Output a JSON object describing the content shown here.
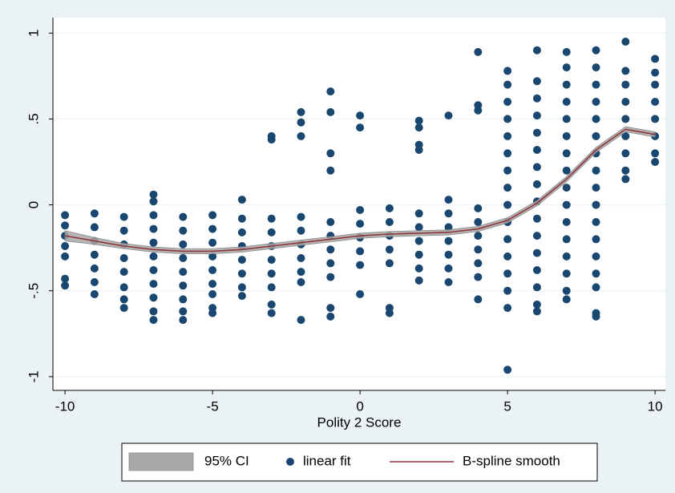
{
  "chart_data": {
    "type": "scatter",
    "x_label": "Polity 2 Score",
    "xlim": [
      -10.41,
      10.35
    ],
    "ylim": [
      -1.08,
      1.09
    ],
    "xticks": [
      -10,
      -5,
      0,
      5,
      10
    ],
    "yticks": [
      {
        "value": -1,
        "label": "-1"
      },
      {
        "value": -0.5,
        "label": "-.5"
      },
      0,
      {
        "value": 0.5,
        "label": ".5"
      },
      1
    ],
    "grid": true,
    "legend": "bottom",
    "series": [
      {
        "name": "95% CI",
        "type": "band",
        "color": "#a8a8a8",
        "x": [
          -10,
          -9,
          -8,
          -7,
          -6,
          -5,
          -4,
          -3,
          -2,
          -1,
          0,
          1,
          2,
          3,
          4,
          5,
          6,
          7,
          8,
          9,
          10
        ],
        "lower": [
          -0.21,
          -0.23,
          -0.255,
          -0.275,
          -0.285,
          -0.285,
          -0.275,
          -0.255,
          -0.235,
          -0.215,
          -0.195,
          -0.185,
          -0.18,
          -0.175,
          -0.155,
          -0.105,
          -0.005,
          0.135,
          0.305,
          0.425,
          0.395
        ],
        "upper": [
          -0.15,
          -0.19,
          -0.225,
          -0.245,
          -0.255,
          -0.255,
          -0.245,
          -0.225,
          -0.205,
          -0.185,
          -0.165,
          -0.155,
          -0.15,
          -0.145,
          -0.125,
          -0.075,
          0.025,
          0.165,
          0.335,
          0.455,
          0.425
        ]
      },
      {
        "name": "linear fit",
        "type": "points",
        "color": "#1a476f",
        "x": [
          -10,
          -10,
          -10,
          -10,
          -10,
          -10,
          -10,
          -9,
          -9,
          -9,
          -9,
          -9,
          -9,
          -9,
          -8,
          -8,
          -8,
          -8,
          -8,
          -8,
          -8,
          -8,
          -7,
          -7,
          -7,
          -7,
          -7,
          -7,
          -7,
          -7,
          -7,
          -7,
          -7,
          -6,
          -6,
          -6,
          -6,
          -6,
          -6,
          -6,
          -6,
          -6,
          -5,
          -5,
          -5,
          -5,
          -5,
          -5,
          -5,
          -5,
          -5,
          -4,
          -4,
          -4,
          -4,
          -4,
          -4,
          -4,
          -4,
          -3,
          -3,
          -3,
          -3,
          -3,
          -3,
          -3,
          -3,
          -3,
          -3,
          -2,
          -2,
          -2,
          -2,
          -2,
          -2,
          -2,
          -2,
          -2,
          -2,
          -1,
          -1,
          -1,
          -1,
          -1,
          -1,
          -1,
          -1,
          -1,
          -1,
          -1,
          0,
          0,
          0,
          0,
          0,
          0,
          0,
          0,
          1,
          1,
          1,
          1,
          1,
          1,
          1,
          2,
          2,
          2,
          2,
          2,
          2,
          2,
          2,
          2,
          2,
          3,
          3,
          3,
          3,
          3,
          3,
          3,
          3,
          4,
          4,
          4,
          4,
          4,
          4,
          4,
          4,
          4,
          4,
          5,
          5,
          5,
          5,
          5,
          5,
          5,
          5,
          5,
          5,
          5,
          5,
          5,
          5,
          5,
          5,
          6,
          6,
          6,
          6,
          6,
          6,
          6,
          6,
          6,
          6,
          6,
          6,
          6,
          6,
          6,
          6,
          7,
          7,
          7,
          7,
          7,
          7,
          7,
          7,
          7,
          7,
          7,
          7,
          7,
          7,
          7,
          7,
          8,
          8,
          8,
          8,
          8,
          8,
          8,
          8,
          8,
          8,
          8,
          8,
          8,
          8,
          8,
          8,
          8,
          9,
          9,
          9,
          9,
          9,
          9,
          9,
          9,
          9,
          10,
          10,
          10,
          10,
          10,
          10,
          10,
          10
        ],
        "values": [
          -0.06,
          -0.12,
          -0.18,
          -0.24,
          -0.3,
          -0.43,
          -0.47,
          -0.05,
          -0.13,
          -0.21,
          -0.29,
          -0.37,
          -0.45,
          -0.52,
          -0.07,
          -0.15,
          -0.23,
          -0.31,
          -0.39,
          -0.48,
          -0.55,
          -0.6,
          0.06,
          0.02,
          -0.06,
          -0.14,
          -0.22,
          -0.3,
          -0.38,
          -0.46,
          -0.54,
          -0.62,
          -0.67,
          -0.07,
          -0.15,
          -0.23,
          -0.31,
          -0.39,
          -0.47,
          -0.55,
          -0.62,
          -0.67,
          -0.06,
          -0.14,
          -0.22,
          -0.3,
          -0.38,
          -0.46,
          -0.52,
          -0.6,
          -0.63,
          0.03,
          -0.08,
          -0.16,
          -0.24,
          -0.32,
          -0.4,
          -0.48,
          -0.53,
          0.4,
          0.38,
          -0.08,
          -0.16,
          -0.24,
          -0.32,
          -0.4,
          -0.48,
          -0.58,
          -0.63,
          0.54,
          0.48,
          0.4,
          -0.07,
          -0.15,
          -0.23,
          -0.31,
          -0.39,
          -0.45,
          -0.67,
          0.66,
          0.54,
          0.3,
          0.2,
          -0.1,
          -0.18,
          -0.26,
          -0.34,
          -0.42,
          -0.6,
          -0.65,
          0.52,
          0.45,
          -0.03,
          -0.11,
          -0.19,
          -0.27,
          -0.35,
          -0.52,
          -0.02,
          -0.1,
          -0.18,
          -0.26,
          -0.34,
          -0.6,
          -0.63,
          0.49,
          0.45,
          0.35,
          0.32,
          -0.05,
          -0.13,
          -0.21,
          -0.29,
          -0.37,
          -0.44,
          0.52,
          0.03,
          -0.05,
          -0.13,
          -0.21,
          -0.29,
          -0.37,
          -0.45,
          0.89,
          0.58,
          0.55,
          -0.02,
          -0.1,
          -0.18,
          -0.26,
          -0.34,
          -0.42,
          -0.55,
          0.78,
          0.7,
          0.6,
          0.5,
          0.4,
          0.3,
          0.2,
          0.1,
          0,
          -0.1,
          -0.2,
          -0.3,
          -0.4,
          -0.5,
          -0.6,
          -0.96,
          0.9,
          0.72,
          0.62,
          0.52,
          0.42,
          0.32,
          0.22,
          0.12,
          0.02,
          -0.08,
          -0.18,
          -0.28,
          -0.38,
          -0.48,
          -0.58,
          -0.62,
          0.89,
          0.8,
          0.7,
          0.6,
          0.5,
          0.4,
          0.3,
          0.2,
          0.1,
          0,
          -0.1,
          -0.2,
          -0.3,
          -0.4,
          -0.5,
          -0.55,
          0.9,
          0.8,
          0.7,
          0.6,
          0.5,
          0.4,
          0.3,
          0.2,
          0.1,
          0,
          -0.1,
          -0.2,
          -0.3,
          -0.4,
          -0.48,
          -0.63,
          -0.65,
          0.95,
          0.78,
          0.7,
          0.6,
          0.5,
          0.4,
          0.3,
          0.2,
          0.15,
          0.85,
          0.77,
          0.7,
          0.6,
          0.5,
          0.4,
          0.3,
          0.25
        ]
      },
      {
        "name": "B-spline smooth",
        "type": "line",
        "color": "#90353b",
        "x": [
          -10,
          -9,
          -8,
          -7,
          -6,
          -5,
          -4,
          -3,
          -2,
          -1,
          0,
          1,
          2,
          3,
          4,
          5,
          6,
          7,
          8,
          9,
          10
        ],
        "values": [
          -0.18,
          -0.21,
          -0.24,
          -0.26,
          -0.27,
          -0.27,
          -0.26,
          -0.24,
          -0.22,
          -0.2,
          -0.18,
          -0.17,
          -0.165,
          -0.16,
          -0.14,
          -0.09,
          0.01,
          0.15,
          0.32,
          0.44,
          0.41
        ]
      }
    ]
  }
}
